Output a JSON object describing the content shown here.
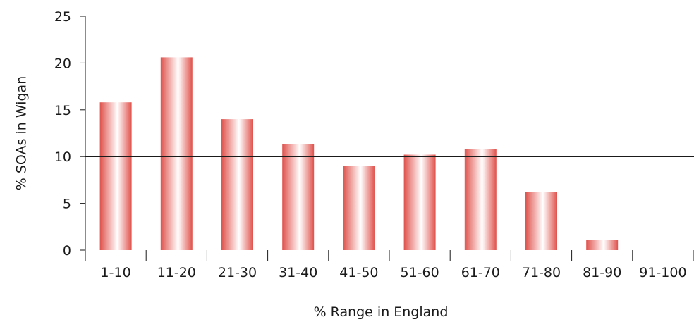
{
  "chart_data": {
    "type": "bar",
    "title": "",
    "xlabel": "% Range in England",
    "ylabel": "% SOAs in Wigan",
    "categories": [
      "1-10",
      "11-20",
      "21-30",
      "31-40",
      "41-50",
      "51-60",
      "61-70",
      "71-80",
      "81-90",
      "91-100"
    ],
    "values": [
      15.8,
      20.6,
      14.0,
      11.3,
      9.0,
      10.2,
      10.8,
      6.2,
      1.1,
      0
    ],
    "ylim": [
      0,
      25
    ],
    "yticks": [
      "0",
      "5",
      "10",
      "15",
      "20",
      "25"
    ],
    "reference_line": 10,
    "grid": false,
    "legend": "none",
    "bar_colors": {
      "edge": "#e0524c",
      "center": "#ffffff"
    },
    "line_color": "#1a1a1a"
  }
}
